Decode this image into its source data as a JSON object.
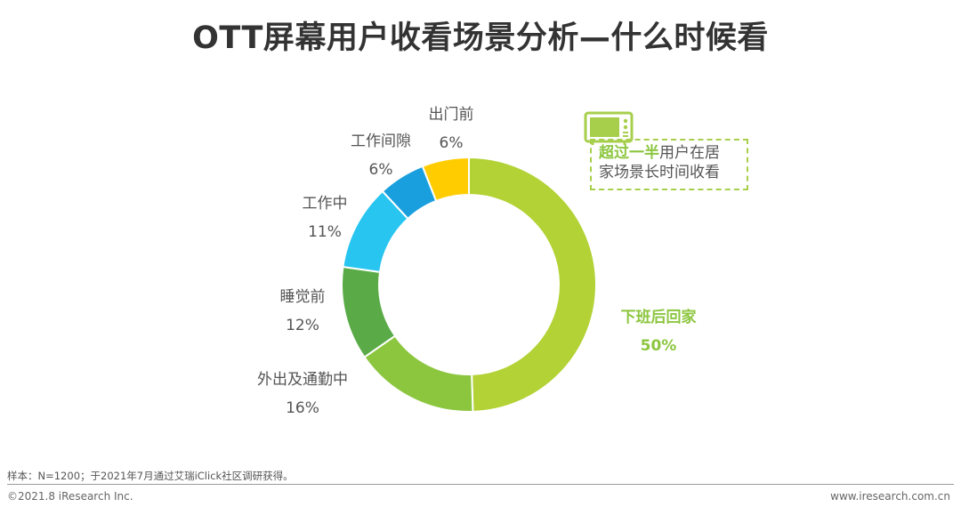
{
  "title": "OTT屏幕用户收看场景分析—什么时候看",
  "chart_data": {
    "type": "pie",
    "variant": "donut",
    "title": "OTT屏幕用户收看场景分析—什么时候看",
    "unit": "%",
    "slices": [
      {
        "label": "下班后回家",
        "value": 50,
        "value_label": "50%",
        "color": "#b2d235",
        "highlight": true
      },
      {
        "label": "外出及通勤中",
        "value": 16,
        "value_label": "16%",
        "color": "#8cc63f",
        "highlight": false
      },
      {
        "label": "睡觉前",
        "value": 12,
        "value_label": "12%",
        "color": "#5aab47",
        "highlight": false
      },
      {
        "label": "工作中",
        "value": 11,
        "value_label": "11%",
        "color": "#27c5f0",
        "highlight": false
      },
      {
        "label": "工作间隙",
        "value": 6,
        "value_label": "6%",
        "color": "#1a9fde",
        "highlight": false
      },
      {
        "label": "出门前",
        "value": 6,
        "value_label": "6%",
        "color": "#ffcc00",
        "highlight": false
      }
    ]
  },
  "callout": {
    "highlight": "超过一半",
    "text_1": "用户在居",
    "text_2": "家场景长时间收看",
    "icon": "tv-icon",
    "border_color": "#a7cf4c"
  },
  "footer": {
    "note": "样本：N=1200；于2021年7月通过艾瑞iClick社区调研获得。",
    "copyright": "©2021.8 iResearch Inc.",
    "website": "www.iresearch.com.cn"
  }
}
